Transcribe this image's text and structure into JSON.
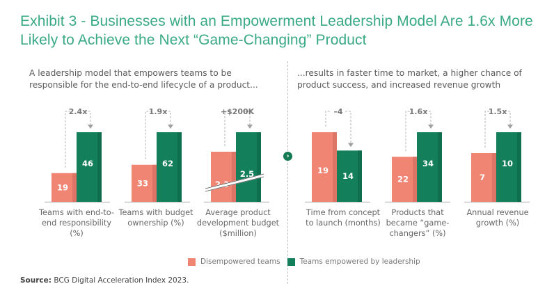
{
  "title": "Exhibit 3 - Businesses with an Empowerment Leadership Model Are 1.6x More Likely to Achieve the Next “Game-Changing” Product",
  "subtitle_left": "A leadership model that empowers teams to be responsible for the end-to-end lifecycle of a product...",
  "subtitle_right": "...results in faster time to market, a higher chance of product success, and increased revenue growth",
  "legend": [
    {
      "label": "Disempowered teams",
      "color": "#f08573"
    },
    {
      "label": "Teams empowered by leadership",
      "color": "#137f5b"
    }
  ],
  "source_label": "Source:",
  "source_text": " BCG Digital Acceleration Index 2023.",
  "colors": {
    "disempowered": "#f08573",
    "disempowered_shade": "#dd7566",
    "empowered": "#137f5b",
    "empowered_shade": "#0e6e4e",
    "title": "#3aa986",
    "arrow_circle": "#137a54"
  },
  "chart_data": {
    "type": "bar",
    "title": "Exhibit 3 - Businesses with an Empowerment Leadership Model Are 1.6x More Likely to Achieve the Next “Game-Changing” Product",
    "series_names": [
      "Disempowered teams",
      "Teams empowered by leadership"
    ],
    "groups": [
      {
        "category": "Teams with end-to-end responsibility (%)",
        "disempowered": 19,
        "empowered": 46,
        "comparison": "2.4x",
        "axis_break": false
      },
      {
        "category": "Teams with budget ownership (%)",
        "disempowered": 33,
        "empowered": 62,
        "comparison": "1.9x",
        "axis_break": false
      },
      {
        "category": "Average product development budget ($million)",
        "disempowered": 2.3,
        "empowered": 2.5,
        "comparison": "+$200K",
        "axis_break": true
      },
      {
        "category": "Time from concept to launch (months)",
        "disempowered": 19,
        "empowered": 14,
        "comparison": "–4",
        "axis_break": false
      },
      {
        "category": "Products that became “game-changers” (%)",
        "disempowered": 22,
        "empowered": 34,
        "comparison": "1.6x",
        "axis_break": false
      },
      {
        "category": "Annual revenue growth (%)",
        "disempowered": 7,
        "empowered": 10,
        "comparison": "1.5x",
        "axis_break": false
      }
    ],
    "xlabel": "",
    "ylabel": "",
    "grid": false,
    "legend_position": "bottom-center"
  }
}
